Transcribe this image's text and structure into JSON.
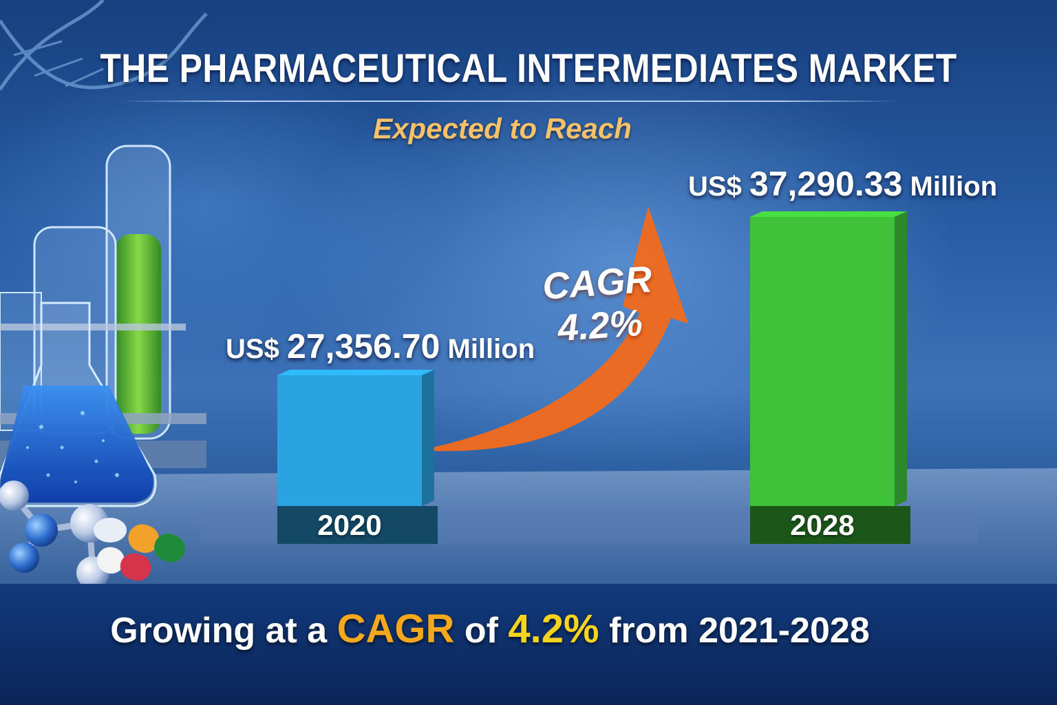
{
  "title": "THE PHARMACEUTICAL INTERMEDIATES MARKET",
  "subtitle": "Expected to Reach",
  "chart_data": {
    "type": "bar",
    "categories": [
      "2020",
      "2028"
    ],
    "values": [
      27356.7,
      37290.33
    ],
    "value_labels": [
      {
        "prefix": "US$",
        "amount": "27,356.70",
        "unit": "Million"
      },
      {
        "prefix": "US$",
        "amount": "37,290.33",
        "unit": "Million"
      }
    ],
    "bar_colors": [
      "#2aa3e0",
      "#3fc23a"
    ],
    "annotation": {
      "line1": "CAGR",
      "line2": "4.2%",
      "color": "#f26a1b"
    },
    "grid": false
  },
  "footer": {
    "part1": "Growing at a",
    "cagr": "CAGR",
    "part2": "of",
    "pct": "4.2%",
    "part3": "from 2021-2028"
  }
}
